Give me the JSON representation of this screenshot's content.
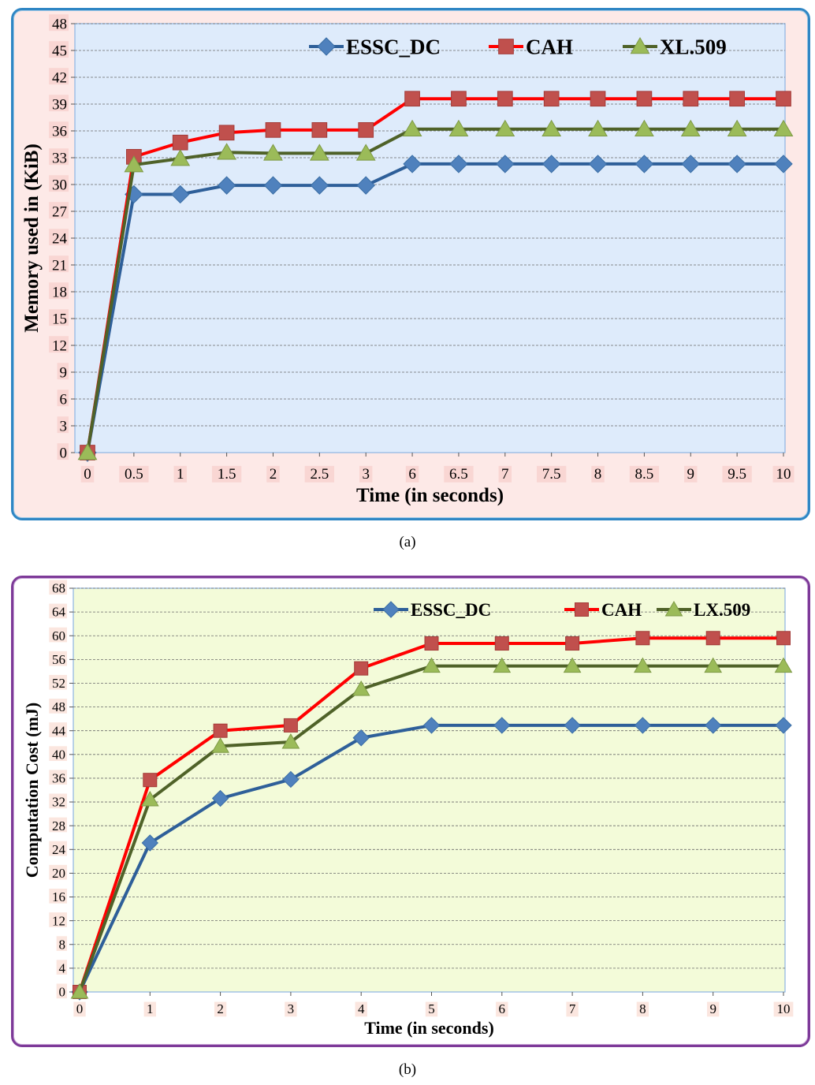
{
  "chart_data": [
    {
      "type": "line",
      "caption": "(a)",
      "xlabel": "Time (in seconds)",
      "ylabel": "Memory used in (KiB)",
      "categories": [
        "0",
        "0.5",
        "1",
        "1.5",
        "2",
        "2.5",
        "3",
        "6",
        "6.5",
        "7",
        "7.5",
        "8",
        "8.5",
        "9",
        "9.5",
        "10"
      ],
      "yticks": [
        "0",
        "3",
        "6",
        "9",
        "12",
        "15",
        "18",
        "21",
        "24",
        "27",
        "30",
        "33",
        "36",
        "39",
        "42",
        "45",
        "48"
      ],
      "ylim": [
        0,
        48
      ],
      "grid": true,
      "legend": "top-right",
      "series": [
        {
          "name": "ESSC_DC",
          "color": "#4f81bd",
          "line": "#2e5f99",
          "marker": "diamond",
          "values": [
            0,
            28.9,
            28.9,
            29.9,
            29.9,
            29.9,
            29.9,
            32.3,
            32.3,
            32.3,
            32.3,
            32.3,
            32.3,
            32.3,
            32.3,
            32.3
          ]
        },
        {
          "name": "CAH",
          "color": "#c0504d",
          "line": "#ff0000",
          "marker": "square",
          "values": [
            0,
            33.1,
            34.7,
            35.8,
            36.1,
            36.1,
            36.1,
            39.6,
            39.6,
            39.6,
            39.6,
            39.6,
            39.6,
            39.6,
            39.6,
            39.6
          ]
        },
        {
          "name": "XL.509",
          "color": "#9bbb59",
          "line": "#4f6228",
          "marker": "triangle",
          "values": [
            0,
            32.2,
            32.9,
            33.6,
            33.5,
            33.5,
            33.5,
            36.2,
            36.2,
            36.2,
            36.2,
            36.2,
            36.2,
            36.2,
            36.2,
            36.2
          ]
        }
      ]
    },
    {
      "type": "line",
      "caption": "(b)",
      "xlabel": "Time (in seconds)",
      "ylabel": "Computation Cost (mJ)",
      "categories": [
        "0",
        "1",
        "2",
        "3",
        "4",
        "5",
        "6",
        "7",
        "8",
        "9",
        "10"
      ],
      "yticks": [
        "0",
        "4",
        "8",
        "12",
        "16",
        "20",
        "24",
        "28",
        "32",
        "36",
        "40",
        "44",
        "48",
        "52",
        "56",
        "60",
        "64",
        "68"
      ],
      "ylim": [
        0,
        68
      ],
      "grid": true,
      "legend": "top-right",
      "series": [
        {
          "name": "ESSC_DC",
          "color": "#4f81bd",
          "line": "#2e5f99",
          "marker": "diamond",
          "values": [
            0,
            25.1,
            32.6,
            35.8,
            42.8,
            44.9,
            44.9,
            44.9,
            44.9,
            44.9,
            44.9
          ]
        },
        {
          "name": "CAH",
          "color": "#c0504d",
          "line": "#ff0000",
          "marker": "square",
          "values": [
            0,
            35.7,
            44.0,
            44.9,
            54.5,
            58.7,
            58.7,
            58.7,
            59.6,
            59.6,
            59.6
          ]
        },
        {
          "name": "LX.509",
          "color": "#9bbb59",
          "line": "#4f6228",
          "marker": "triangle",
          "values": [
            0,
            32.4,
            41.4,
            42.1,
            51.0,
            54.9,
            54.9,
            54.9,
            54.9,
            54.9,
            54.9
          ]
        }
      ]
    }
  ]
}
